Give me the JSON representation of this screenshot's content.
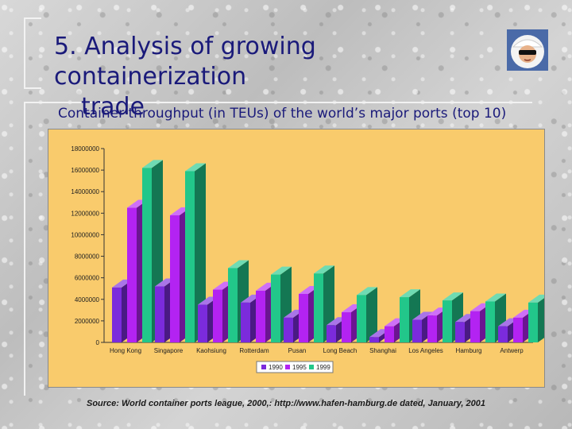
{
  "slide": {
    "title_line1": "5. Analysis of growing containerization",
    "title_line2": "trade",
    "subtitle": "Container throughput (in TEUs) of the world’s major ports (top 10)",
    "source": "Source: World container ports league, 2000,: http://www.hafen-hamburg.de dated, January, 2001"
  },
  "logo": {
    "icon": "sailor-face-icon"
  },
  "colors": {
    "plot_bg": "#f9cb6c",
    "s1990": "#7b2bdc",
    "s1995": "#b323f2",
    "s1999": "#22c78a"
  },
  "chart_data": {
    "type": "bar",
    "title": "",
    "xlabel": "",
    "ylabel": "",
    "ylim": [
      0,
      18000000
    ],
    "yticks": [
      0,
      2000000,
      4000000,
      6000000,
      8000000,
      10000000,
      12000000,
      14000000,
      16000000,
      18000000
    ],
    "ytick_labels": [
      "0",
      "2000000",
      "4000000",
      "6000000",
      "8000000",
      "10000000",
      "12000000",
      "14000000",
      "16000000",
      "18000000"
    ],
    "categories": [
      "Hong Kong",
      "Singapore",
      "Kaohsiung",
      "Rotterdam",
      "Pusan",
      "Long Beach",
      "Shanghai",
      "Los Angeles",
      "Hamburg",
      "Antwerp"
    ],
    "series": [
      {
        "name": "1990",
        "values": [
          5100000,
          5200000,
          3500000,
          3700000,
          2300000,
          1600000,
          500000,
          2100000,
          1900000,
          1500000
        ]
      },
      {
        "name": "1995",
        "values": [
          12500000,
          11800000,
          4900000,
          4800000,
          4500000,
          2800000,
          1500000,
          2500000,
          2900000,
          2300000
        ]
      },
      {
        "name": "1999",
        "values": [
          16200000,
          15900000,
          6900000,
          6300000,
          6400000,
          4400000,
          4200000,
          3900000,
          3800000,
          3700000
        ]
      }
    ],
    "grid": false,
    "legend_position": "bottom"
  }
}
